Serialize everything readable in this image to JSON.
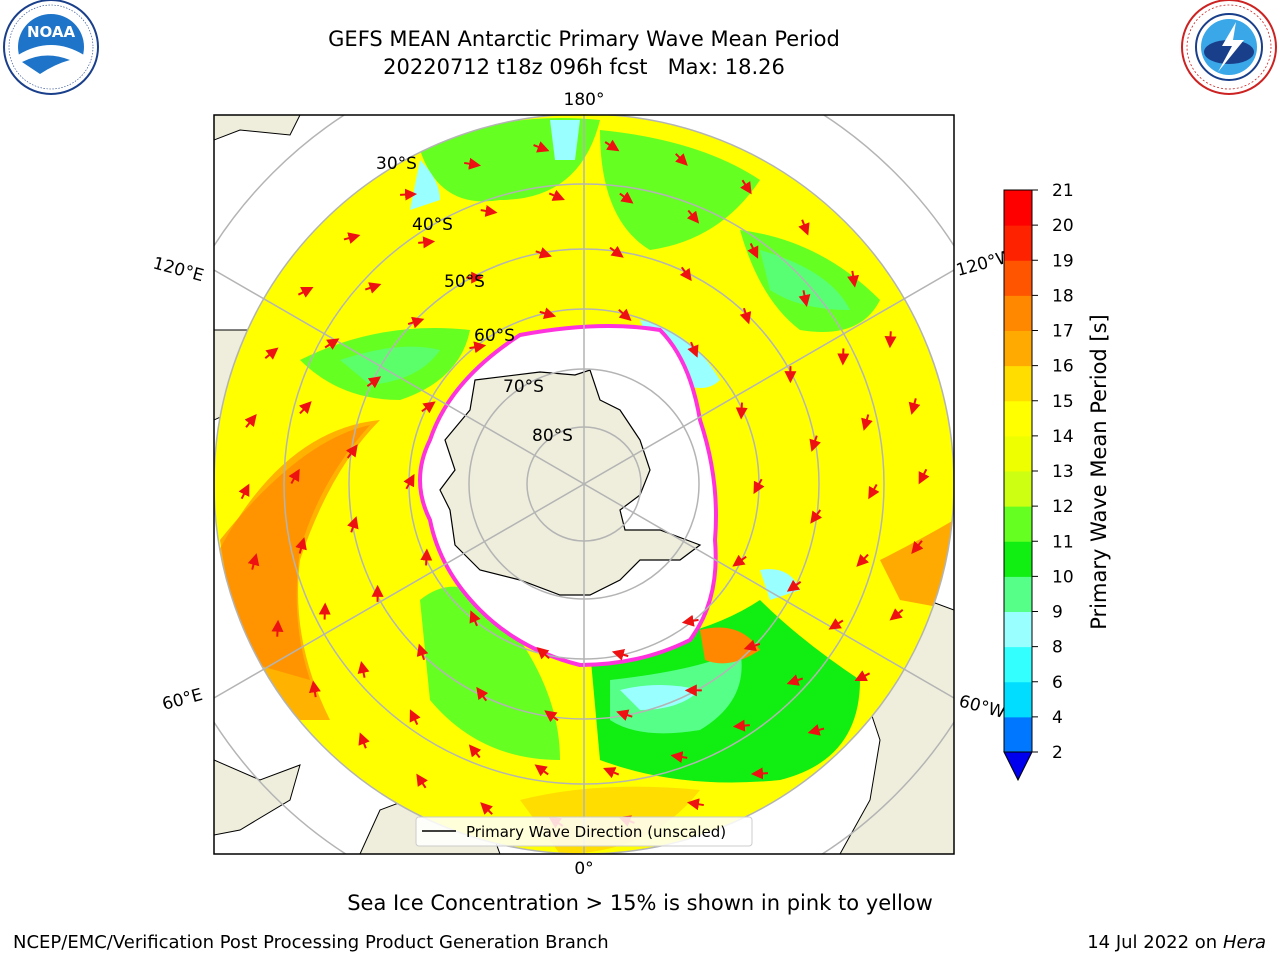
{
  "header": {
    "title_line1": "GEFS MEAN Antarctic Primary Wave Mean Period",
    "title_line2": "20220712 t18z 096h fcst   Max: 18.26"
  },
  "logos": {
    "left": {
      "icon": "noaa-logo-icon",
      "text": "NOAA",
      "ring_text": "NATIONAL OCEANIC AND ATMOSPHERIC ADMINISTRATION · U.S. DEPARTMENT OF COMMERCE"
    },
    "right": {
      "icon": "nws-logo-icon",
      "ring_text": "NATIONAL WEATHER SERVICE"
    }
  },
  "map": {
    "projection": "south-polar-stereographic",
    "longitude_labels": {
      "top": "180°",
      "bottom": "0°",
      "upper_left": "120°E",
      "upper_right": "120°W",
      "lower_left": "60°E",
      "lower_right": "60°W"
    },
    "latitude_labels": [
      "30°S",
      "40°S",
      "50°S",
      "60°S",
      "70°S",
      "80°S"
    ],
    "legend_label": "Primary Wave Direction (unscaled)",
    "colors": {
      "land": "#efeedd",
      "sea_ice": "#ffffff",
      "ice_edge": "#ff33dd",
      "arrow": "#ee1111",
      "grid": "#b4b4b4"
    }
  },
  "colorbar": {
    "label": "Primary Wave Mean Period [s]",
    "ticks": [
      "2",
      "4",
      "6",
      "8",
      "9",
      "10",
      "11",
      "12",
      "13",
      "14",
      "15",
      "16",
      "17",
      "18",
      "19",
      "20",
      "21"
    ],
    "bin_colors": [
      "#0077ff",
      "#00ddff",
      "#33ffff",
      "#99ffff",
      "#55ff88",
      "#11ee11",
      "#66ff22",
      "#ccff11",
      "#eeff00",
      "#ffff00",
      "#ffdd00",
      "#ffaa00",
      "#ff8800",
      "#ff5500",
      "#ff2200",
      "#ff0000"
    ],
    "extend_color": "#0000ee"
  },
  "footer": {
    "note": "Sea Ice Concentration > 15% is shown in pink to yellow",
    "credit": "NCEP/EMC/Verification Post Processing Product Generation Branch",
    "date": "14 Jul 2022 on ",
    "machine": "Hera"
  }
}
